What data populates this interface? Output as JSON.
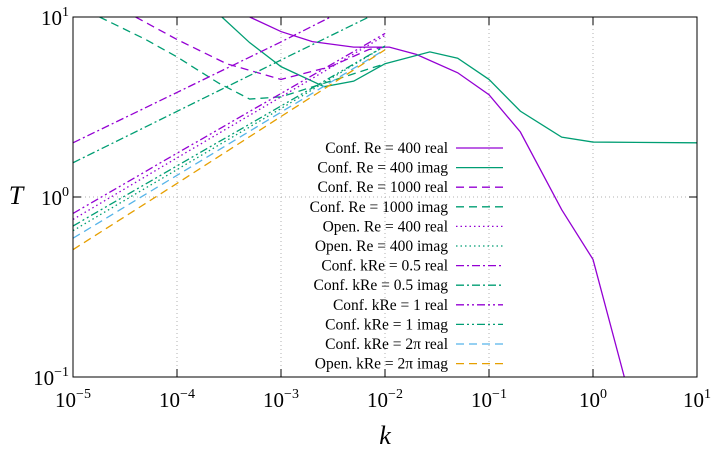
{
  "chart_data": {
    "type": "line",
    "xlabel": "k",
    "ylabel": "T",
    "log_x": true,
    "log_y": true,
    "grid": true,
    "xlim": [
      1e-05,
      10
    ],
    "ylim": [
      0.1,
      10
    ],
    "xticks": [
      {
        "value": 1e-05,
        "label": "10",
        "sup": "−5"
      },
      {
        "value": 0.0001,
        "label": "10",
        "sup": "−4"
      },
      {
        "value": 0.001,
        "label": "10",
        "sup": "−3"
      },
      {
        "value": 0.01,
        "label": "10",
        "sup": "−2"
      },
      {
        "value": 0.1,
        "label": "10",
        "sup": "−1"
      },
      {
        "value": 1,
        "label": "10",
        "sup": "0"
      },
      {
        "value": 10,
        "label": "10",
        "sup": "1"
      }
    ],
    "yticks": [
      {
        "value": 0.1,
        "label": "10",
        "sup": "−1"
      },
      {
        "value": 1,
        "label": "10",
        "sup": "0"
      },
      {
        "value": 10,
        "label": "10",
        "sup": "1"
      }
    ],
    "series": [
      {
        "name": "Conf. Re = 400 real",
        "color": "#9400d3",
        "dash": "solid",
        "x": [
          0.0005,
          0.001,
          0.002,
          0.005,
          0.011,
          0.02,
          0.05,
          0.1,
          0.2,
          0.5,
          1,
          2
        ],
        "values": [
          10,
          8.3,
          7.3,
          6.8,
          6.8,
          6.2,
          4.9,
          3.7,
          2.3,
          0.85,
          0.45,
          0.1
        ]
      },
      {
        "name": "Conf. Re = 400 imag",
        "color": "#009e73",
        "dash": "solid",
        "x": [
          0.00027,
          0.0005,
          0.001,
          0.0026,
          0.005,
          0.01,
          0.027,
          0.05,
          0.1,
          0.2,
          0.5,
          1,
          10
        ],
        "values": [
          10,
          7.2,
          5.3,
          4.1,
          4.4,
          5.5,
          6.4,
          5.9,
          4.5,
          3.0,
          2.15,
          2.02,
          2.0
        ]
      },
      {
        "name": "Conf. Re = 1000 real",
        "color": "#9400d3",
        "dash": "dashed",
        "x": [
          4e-05,
          0.0001,
          0.0003,
          0.001,
          0.003,
          0.007,
          0.01
        ],
        "values": [
          10,
          7.5,
          5.5,
          4.5,
          5.3,
          6.6,
          6.8
        ]
      },
      {
        "name": "Conf. Re = 1000 imag",
        "color": "#009e73",
        "dash": "dashed",
        "x": [
          1.8e-05,
          5e-05,
          0.0001,
          0.00025,
          0.0005,
          0.001,
          0.003,
          0.01
        ],
        "values": [
          10,
          7.5,
          6.0,
          4.3,
          3.5,
          3.6,
          4.4,
          5.5
        ]
      },
      {
        "name": "Open. Re = 400 real",
        "color": "#9400d3",
        "dash": "dotted",
        "x": [
          1e-05,
          0.0001,
          0.001,
          0.01
        ],
        "values": [
          0.75,
          1.65,
          3.6,
          7.9
        ]
      },
      {
        "name": "Open. Re = 400 imag",
        "color": "#009e73",
        "dash": "dotted",
        "x": [
          1e-05,
          0.0001,
          0.001,
          0.01
        ],
        "values": [
          0.65,
          1.42,
          3.1,
          6.9
        ]
      },
      {
        "name": "Conf. kRe = 0.5 real",
        "color": "#9400d3",
        "dash": "dashdot",
        "x": [
          1e-05,
          0.0001,
          0.001,
          0.003
        ],
        "values": [
          2.0,
          3.81,
          7.27,
          10
        ]
      },
      {
        "name": "Conf. kRe = 0.5 imag",
        "color": "#009e73",
        "dash": "dashdot",
        "x": [
          1e-05,
          0.0001,
          0.001,
          0.007
        ],
        "values": [
          1.55,
          2.99,
          5.77,
          10
        ]
      },
      {
        "name": "Conf. kRe = 1 real",
        "color": "#9400d3",
        "dash": "dashdotdot",
        "x": [
          1e-05,
          0.0001,
          0.001,
          0.01
        ],
        "values": [
          0.81,
          1.75,
          3.76,
          8.1
        ]
      },
      {
        "name": "Conf. kRe = 1 imag",
        "color": "#009e73",
        "dash": "dashdotdot",
        "x": [
          1e-05,
          0.0001,
          0.001,
          0.01
        ],
        "values": [
          0.69,
          1.49,
          3.2,
          6.9
        ]
      },
      {
        "name": "Conf. kRe = 2π real",
        "color": "#56b4e9",
        "dash": "dashed",
        "x": [
          1e-05,
          0.0001,
          0.001,
          0.01
        ],
        "values": [
          0.59,
          1.32,
          2.96,
          6.6
        ]
      },
      {
        "name": "Open. kRe = 2π imag",
        "color": "#e69f00",
        "dash": "dashed",
        "x": [
          1e-05,
          0.0001,
          0.001,
          0.01
        ],
        "values": [
          0.51,
          1.19,
          2.8,
          6.57
        ]
      }
    ]
  }
}
